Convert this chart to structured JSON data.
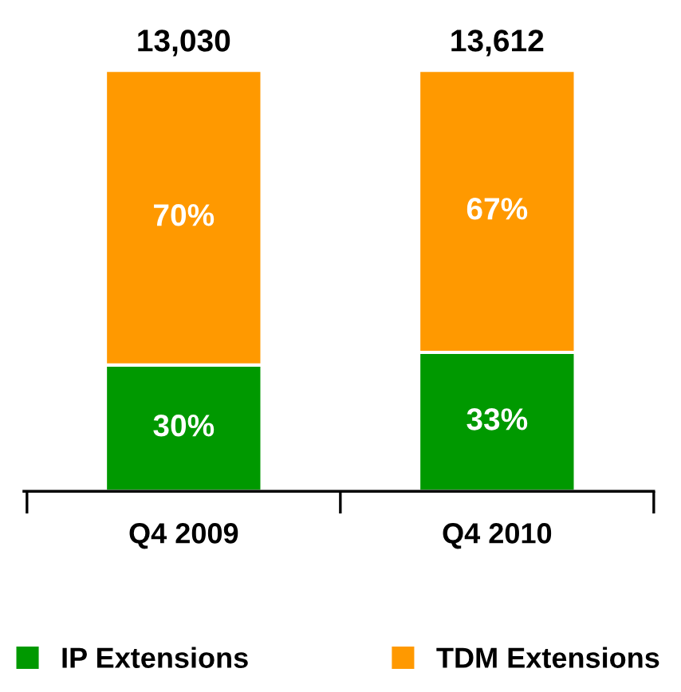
{
  "chart_data": {
    "type": "bar",
    "stacked": true,
    "categories": [
      "Q4 2009",
      "Q4 2010"
    ],
    "series": [
      {
        "name": "IP Extensions",
        "color": "#009900",
        "values": [
          30,
          33
        ],
        "value_labels": [
          "30%",
          "33%"
        ]
      },
      {
        "name": "TDM Extensions",
        "color": "#ff9900",
        "values": [
          70,
          67
        ],
        "value_labels": [
          "70%",
          "67%"
        ]
      }
    ],
    "annotations": [
      "13,030",
      "13,612"
    ],
    "legend": "bottom",
    "grid": false
  }
}
